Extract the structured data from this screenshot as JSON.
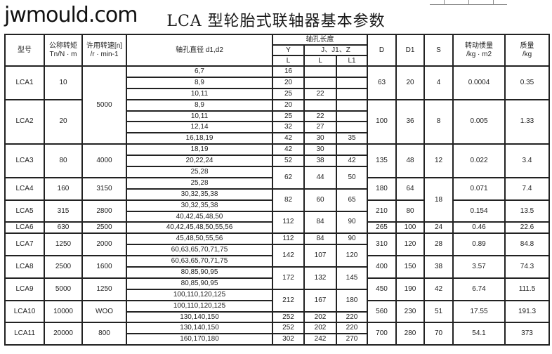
{
  "title": "LCA 型轮胎式联轴器基本参数",
  "watermark": "jwmould.com",
  "header": {
    "model": "型号",
    "torque": "公称转矩",
    "torque_unit": "Tn/N · m",
    "speed": "许用转速[n]",
    "speed_unit": "/r · min-1",
    "bore": "轴孔直径 d1,d2",
    "length": "轴孔长度",
    "y": "Y",
    "jz": "J、J1、Z",
    "l": "L",
    "l2": "L",
    "l1": "L1",
    "D": "D",
    "D1": "D1",
    "S": "S",
    "inertia": "转动惯量",
    "inertia_unit": "/kg · m2",
    "mass": "质量",
    "mass_unit": "/kg"
  },
  "bores": [
    "6,7",
    "8,9",
    "10,11",
    "8,9",
    "10,11",
    "12,14",
    "16,18,19",
    "18,19",
    "20,22,24",
    "25,28",
    "25,28",
    "30,32,35,38",
    "30,32,35,38",
    "40,42,45,48,50",
    "40,42,45,48,50,55,56",
    "45,48,50,55,56",
    "60,63,65,70,71,75",
    "60,63,65,70,71,75",
    "80,85,90,95",
    "80,85,90,95",
    "100,110,120,125",
    "100,110,120,125",
    "130,140,150",
    "130,140,150",
    "160,170,180"
  ],
  "lengths": [
    {
      "y": "16",
      "j": "",
      "j1": "",
      "span": 1
    },
    {
      "y": "20",
      "j": "",
      "j1": "",
      "span": 1
    },
    {
      "y": "25",
      "j": "22",
      "j1": "",
      "span": 1
    },
    {
      "y": "20",
      "j": "",
      "j1": "",
      "span": 1
    },
    {
      "y": "25",
      "j": "22",
      "j1": "",
      "span": 1
    },
    {
      "y": "32",
      "j": "27",
      "j1": "",
      "span": 1
    },
    {
      "y": "42",
      "j": "30",
      "j1": "35",
      "span": 1
    },
    {
      "y": "42",
      "j": "30",
      "j1": "",
      "span": 1
    },
    {
      "y": "52",
      "j": "38",
      "j1": "42",
      "span": 1
    },
    {
      "y": "62",
      "j": "44",
      "j1": "50",
      "span": 2
    },
    {
      "y": "82",
      "j": "60",
      "j1": "65",
      "span": 2
    },
    {
      "y": "112",
      "j": "84",
      "j1": "90",
      "span": 2
    },
    {
      "y": "112",
      "j": "84",
      "j1": "90",
      "span": 1
    },
    {
      "y": "142",
      "j": "107",
      "j1": "120",
      "span": 2
    },
    {
      "y": "172",
      "j": "132",
      "j1": "145",
      "span": 2
    },
    {
      "y": "212",
      "j": "167",
      "j1": "180",
      "span": 2
    },
    {
      "y": "252",
      "j": "202",
      "j1": "220",
      "span": 1
    },
    {
      "y": "252",
      "j": "202",
      "j1": "220",
      "span": 1
    },
    {
      "y": "302",
      "j": "242",
      "j1": "270",
      "span": 1
    }
  ],
  "speeds": [
    {
      "value": "5000",
      "span": 7
    },
    {
      "value": "4000",
      "span": 3
    },
    {
      "value": "3150",
      "span": 2
    },
    {
      "value": "2800",
      "span": 2
    },
    {
      "value": "2500",
      "span": 1
    },
    {
      "value": "2000",
      "span": 2
    },
    {
      "value": "1600",
      "span": 2
    },
    {
      "value": "1250",
      "span": 2
    },
    {
      "value": "WOO",
      "span": 2
    },
    {
      "value": "800",
      "span": 2
    }
  ],
  "s_values": [
    {
      "value": "4",
      "span": 3
    },
    {
      "value": "8",
      "span": 4
    },
    {
      "value": "12",
      "span": 3
    },
    {
      "value": "18",
      "span": 4
    },
    {
      "value": "24",
      "span": 1
    },
    {
      "value": "28",
      "span": 2
    },
    {
      "value": "38",
      "span": 2
    },
    {
      "value": "42",
      "span": 2
    },
    {
      "value": "51",
      "span": 2
    },
    {
      "value": "70",
      "span": 2
    }
  ],
  "models": [
    {
      "model": "LCA1",
      "torque": "10",
      "D": "63",
      "D1": "20",
      "inertia": "0.0004",
      "mass": "0.35",
      "span": 3
    },
    {
      "model": "LCA2",
      "torque": "20",
      "D": "100",
      "D1": "36",
      "inertia": "0.005",
      "mass": "1.33",
      "span": 4
    },
    {
      "model": "LCA3",
      "torque": "80",
      "D": "135",
      "D1": "48",
      "inertia": "0.022",
      "mass": "3.4",
      "span": 3
    },
    {
      "model": "LCA4",
      "torque": "160",
      "D": "180",
      "D1": "64",
      "inertia": "0.071",
      "mass": "7.4",
      "span": 2
    },
    {
      "model": "LCA5",
      "torque": "315",
      "D": "210",
      "D1": "80",
      "inertia": "0.154",
      "mass": "13.5",
      "span": 2
    },
    {
      "model": "LCA6",
      "torque": "630",
      "D": "265",
      "D1": "100",
      "inertia": "0.46",
      "mass": "22.6",
      "span": 1
    },
    {
      "model": "LCA7",
      "torque": "1250",
      "D": "310",
      "D1": "120",
      "inertia": "0.89",
      "mass": "84.8",
      "span": 2
    },
    {
      "model": "LCA8",
      "torque": "2500",
      "D": "400",
      "D1": "150",
      "inertia": "3.57",
      "mass": "74.3",
      "span": 2
    },
    {
      "model": "LCA9",
      "torque": "5000",
      "D": "450",
      "D1": "190",
      "inertia": "6.74",
      "mass": "111.5",
      "span": 2
    },
    {
      "model": "LCA10",
      "torque": "10000",
      "D": "560",
      "D1": "230",
      "inertia": "17.55",
      "mass": "191.3",
      "span": 2
    },
    {
      "model": "LCA11",
      "torque": "20000",
      "D": "700",
      "D1": "280",
      "inertia": "54.1",
      "mass": "373",
      "span": 2
    }
  ]
}
